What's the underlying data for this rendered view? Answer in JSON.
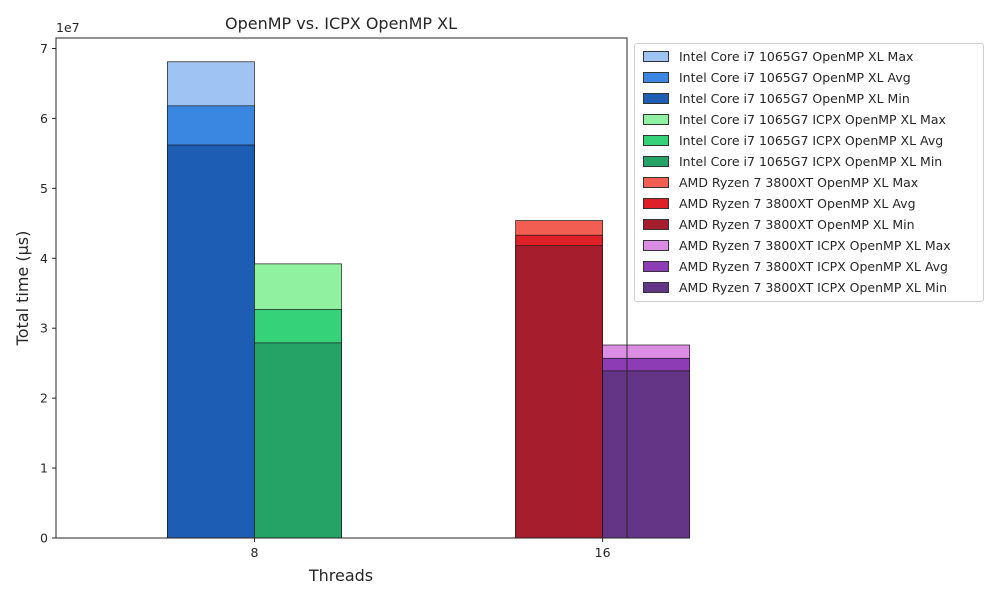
{
  "chart_data": {
    "type": "bar",
    "title": "OpenMP vs. ICPX OpenMP XL",
    "xlabel": "Threads",
    "ylabel": "Total time (µs)",
    "y_scale_label": "1e7",
    "y_multiplier": 10000000,
    "ylim": [
      0,
      7.15
    ],
    "yticks": [
      0,
      1,
      2,
      3,
      4,
      5,
      6,
      7
    ],
    "categories": [
      "8",
      "16"
    ],
    "grid": false,
    "legend_position": "outside-right",
    "series": [
      {
        "name": "Intel Core i7 1065G7 OpenMP XL Max",
        "group": "intel-openmp",
        "color": "#9fc3f2",
        "values": [
          6.81,
          null
        ]
      },
      {
        "name": "Intel Core i7 1065G7 OpenMP XL Avg",
        "group": "intel-openmp",
        "color": "#3a87e2",
        "values": [
          6.18,
          null
        ]
      },
      {
        "name": "Intel Core i7 1065G7 OpenMP XL Min",
        "group": "intel-openmp",
        "color": "#1d5eb4",
        "values": [
          5.62,
          null
        ]
      },
      {
        "name": "Intel Core i7 1065G7 ICPX OpenMP XL Max",
        "group": "intel-icpx",
        "color": "#90f1a0",
        "values": [
          3.92,
          null
        ]
      },
      {
        "name": "Intel Core i7 1065G7 ICPX OpenMP XL Avg",
        "group": "intel-icpx",
        "color": "#35d27a",
        "values": [
          3.27,
          null
        ]
      },
      {
        "name": "Intel Core i7 1065G7 ICPX OpenMP XL Min",
        "group": "intel-icpx",
        "color": "#25a265",
        "values": [
          2.79,
          null
        ]
      },
      {
        "name": "AMD Ryzen 7 3800XT OpenMP XL Max",
        "group": "amd-openmp",
        "color": "#f25f52",
        "values": [
          null,
          4.54
        ]
      },
      {
        "name": "AMD Ryzen 7 3800XT OpenMP XL Avg",
        "group": "amd-openmp",
        "color": "#de2029",
        "values": [
          null,
          4.33
        ]
      },
      {
        "name": "AMD Ryzen 7 3800XT OpenMP XL Min",
        "group": "amd-openmp",
        "color": "#a61d2e",
        "values": [
          null,
          4.18
        ]
      },
      {
        "name": "AMD Ryzen 7 3800XT ICPX OpenMP XL Max",
        "group": "amd-icpx",
        "color": "#db8de3",
        "values": [
          null,
          2.76
        ]
      },
      {
        "name": "AMD Ryzen 7 3800XT ICPX OpenMP XL Avg",
        "group": "amd-icpx",
        "color": "#8e3cb6",
        "values": [
          null,
          2.57
        ]
      },
      {
        "name": "AMD Ryzen 7 3800XT ICPX OpenMP XL Min",
        "group": "amd-icpx",
        "color": "#643587",
        "values": [
          null,
          2.39
        ]
      }
    ]
  }
}
